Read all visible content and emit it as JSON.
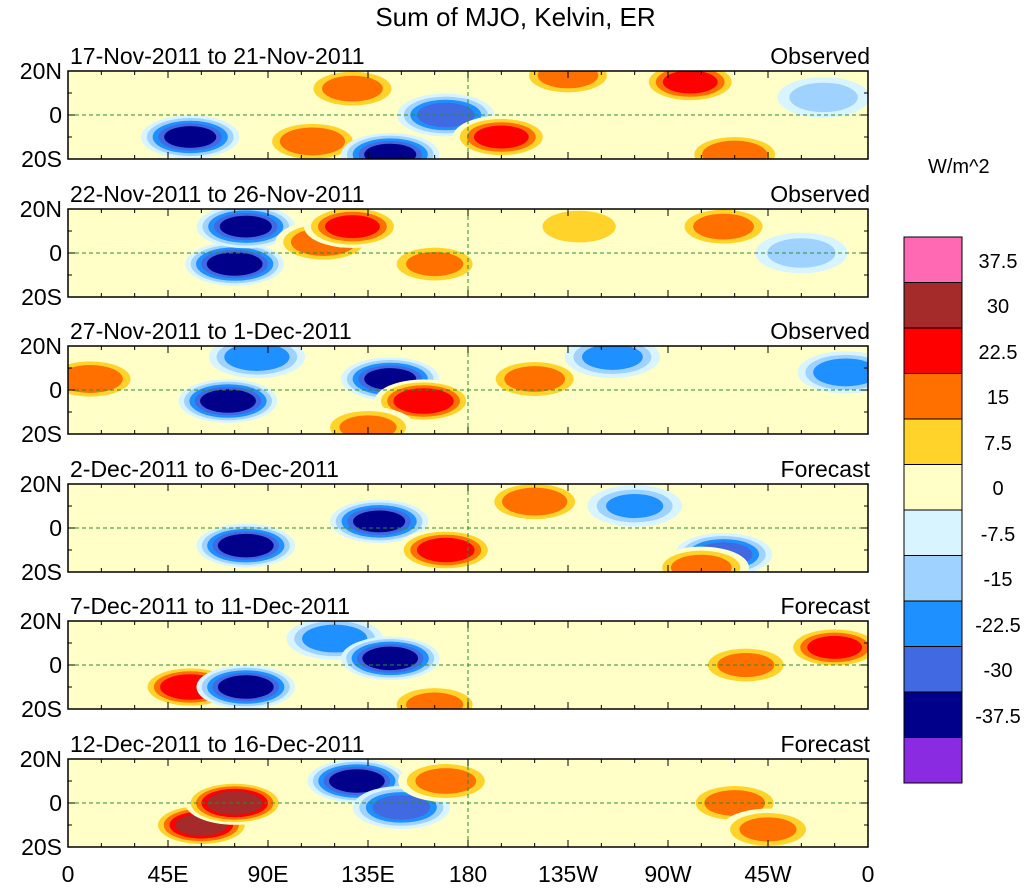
{
  "title": "Sum of MJO, Kelvin, ER",
  "panels": [
    {
      "date_range": "17-Nov-2011 to 21-Nov-2011",
      "type": "Observed"
    },
    {
      "date_range": "22-Nov-2011 to 26-Nov-2011",
      "type": "Observed"
    },
    {
      "date_range": "27-Nov-2011 to 1-Dec-2011",
      "type": "Observed"
    },
    {
      "date_range": "2-Dec-2011 to 6-Dec-2011",
      "type": "Forecast"
    },
    {
      "date_range": "7-Dec-2011 to 11-Dec-2011",
      "type": "Forecast"
    },
    {
      "date_range": "12-Dec-2011 to 16-Dec-2011",
      "type": "Forecast"
    }
  ],
  "lat_labels": [
    "20N",
    "0",
    "20S"
  ],
  "lon_labels": [
    "0",
    "45E",
    "90E",
    "135E",
    "180",
    "135W",
    "90W",
    "45W",
    "0"
  ],
  "colorbar": {
    "units": "W/m^2",
    "labels": [
      "37.5",
      "30",
      "22.5",
      "15",
      "7.5",
      "0",
      "-7.5",
      "-15",
      "-22.5",
      "-30",
      "-37.5"
    ],
    "colors": [
      "#ff69b4",
      "#a52a2a",
      "#ff0000",
      "#ff7000",
      "#ffd32a",
      "#ffffc8",
      "#d7f4ff",
      "#a0d2ff",
      "#1e90ff",
      "#4169e1",
      "#00008b",
      "#8a2be2"
    ]
  },
  "chart_data": {
    "type": "heatmap",
    "title": "Sum of MJO, Kelvin, ER",
    "x_range": [
      0,
      360
    ],
    "y_range": [
      -20,
      20
    ],
    "xticks": [
      "0",
      "45E",
      "90E",
      "135E",
      "180",
      "135W",
      "90W",
      "45W",
      "0"
    ],
    "yticks": [
      "20N",
      "0",
      "20S"
    ],
    "zlabel": "W/m^2",
    "levels": [
      -37.5,
      -30,
      -22.5,
      -15,
      -7.5,
      0,
      7.5,
      15,
      22.5,
      30,
      37.5
    ],
    "anomaly_centers": [
      [
        {
          "lon": 55,
          "lat": -10,
          "value": -35
        },
        {
          "lon": 110,
          "lat": -12,
          "value": 25
        },
        {
          "lon": 128,
          "lat": 12,
          "value": 22
        },
        {
          "lon": 145,
          "lat": -18,
          "value": -35
        },
        {
          "lon": 170,
          "lat": 0,
          "value": -30
        },
        {
          "lon": 195,
          "lat": -10,
          "value": 28
        },
        {
          "lon": 225,
          "lat": 18,
          "value": 22
        },
        {
          "lon": 280,
          "lat": 15,
          "value": 28
        },
        {
          "lon": 300,
          "lat": -18,
          "value": 25
        },
        {
          "lon": 340,
          "lat": 8,
          "value": -15
        }
      ],
      [
        {
          "lon": 75,
          "lat": -5,
          "value": -38
        },
        {
          "lon": 80,
          "lat": 12,
          "value": -35
        },
        {
          "lon": 115,
          "lat": 5,
          "value": 25
        },
        {
          "lon": 128,
          "lat": 12,
          "value": 28
        },
        {
          "lon": 165,
          "lat": -5,
          "value": 20
        },
        {
          "lon": 230,
          "lat": 12,
          "value": 18
        },
        {
          "lon": 295,
          "lat": 12,
          "value": 22
        },
        {
          "lon": 330,
          "lat": 0,
          "value": -15
        }
      ],
      [
        {
          "lon": 10,
          "lat": 5,
          "value": 25
        },
        {
          "lon": 72,
          "lat": -5,
          "value": -38
        },
        {
          "lon": 85,
          "lat": 15,
          "value": -25
        },
        {
          "lon": 145,
          "lat": 5,
          "value": -35
        },
        {
          "lon": 160,
          "lat": -5,
          "value": 32
        },
        {
          "lon": 135,
          "lat": -17,
          "value": 20
        },
        {
          "lon": 210,
          "lat": 5,
          "value": 22
        },
        {
          "lon": 245,
          "lat": 15,
          "value": -22
        },
        {
          "lon": 350,
          "lat": 8,
          "value": -25
        }
      ],
      [
        {
          "lon": 80,
          "lat": -8,
          "value": -38
        },
        {
          "lon": 140,
          "lat": 3,
          "value": -35
        },
        {
          "lon": 170,
          "lat": -10,
          "value": 30
        },
        {
          "lon": 210,
          "lat": 12,
          "value": 25
        },
        {
          "lon": 255,
          "lat": 10,
          "value": -20
        },
        {
          "lon": 295,
          "lat": -12,
          "value": -30
        },
        {
          "lon": 285,
          "lat": -18,
          "value": 22
        }
      ],
      [
        {
          "lon": 55,
          "lat": -10,
          "value": 32
        },
        {
          "lon": 80,
          "lat": -10,
          "value": -38
        },
        {
          "lon": 120,
          "lat": 12,
          "value": -25
        },
        {
          "lon": 145,
          "lat": 3,
          "value": -38
        },
        {
          "lon": 165,
          "lat": -18,
          "value": 20
        },
        {
          "lon": 305,
          "lat": 0,
          "value": 20
        },
        {
          "lon": 345,
          "lat": 8,
          "value": 28
        }
      ],
      [
        {
          "lon": 60,
          "lat": -10,
          "value": 35
        },
        {
          "lon": 75,
          "lat": 0,
          "value": 38
        },
        {
          "lon": 130,
          "lat": 10,
          "value": -38
        },
        {
          "lon": 150,
          "lat": -2,
          "value": -30
        },
        {
          "lon": 170,
          "lat": 10,
          "value": 22
        },
        {
          "lon": 300,
          "lat": 0,
          "value": 22
        },
        {
          "lon": 315,
          "lat": -12,
          "value": 20
        }
      ]
    ]
  }
}
